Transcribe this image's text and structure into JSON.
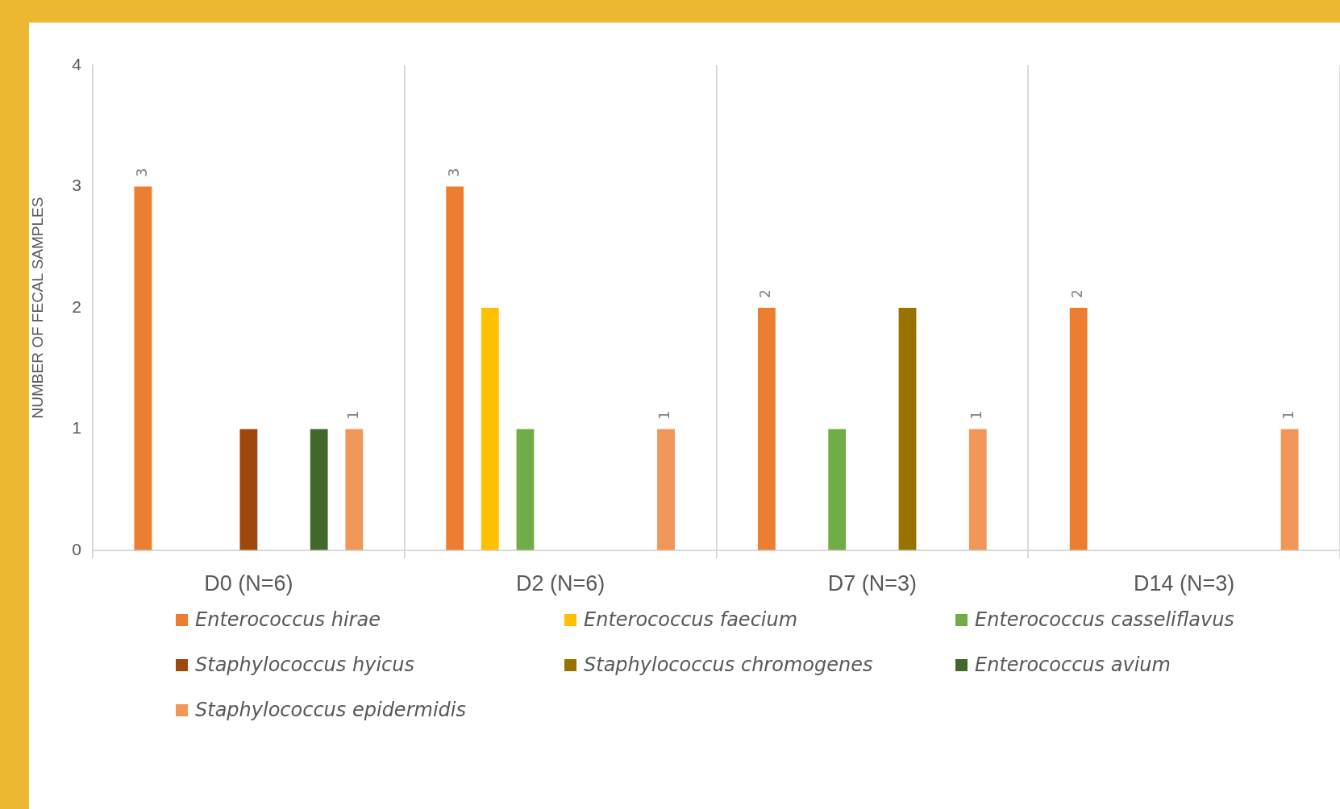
{
  "chart_data": {
    "type": "bar",
    "ylabel": "NUMBER OF FECAL SAMPLES",
    "categories": [
      "D0 (N=6)",
      "D2 (N=6)",
      "D7 (N=3)",
      "D14 (N=3)"
    ],
    "series": [
      {
        "name": "Enterococcus hirae",
        "color": "#ed7d31",
        "values": [
          3,
          3,
          2,
          2
        ],
        "value_labels": [
          "3",
          "3",
          "2",
          "2"
        ]
      },
      {
        "name": "Enterococcus faecium",
        "color": "#ffc000",
        "values": [
          0,
          2,
          0,
          0
        ]
      },
      {
        "name": "Enterococcus casseliflavus",
        "color": "#70ad47",
        "values": [
          0,
          1,
          1,
          0
        ]
      },
      {
        "name": "Staphylococcus hyicus",
        "color": "#9e480e",
        "values": [
          1,
          0,
          0,
          0
        ]
      },
      {
        "name": "Staphylococcus chromogenes",
        "color": "#997300",
        "values": [
          0,
          0,
          2,
          0
        ]
      },
      {
        "name": "Enterococcus avium",
        "color": "#43682b",
        "values": [
          1,
          0,
          0,
          0
        ]
      },
      {
        "name": "Staphylococcus epidermidis",
        "color": "#f1975a",
        "values": [
          1,
          1,
          1,
          1
        ],
        "value_labels": [
          "1",
          "1",
          "1",
          "1"
        ]
      }
    ],
    "ylim": [
      0,
      4
    ],
    "yticks": [
      0,
      1,
      2,
      3,
      4
    ],
    "grid": "x",
    "legend": "bottom"
  }
}
